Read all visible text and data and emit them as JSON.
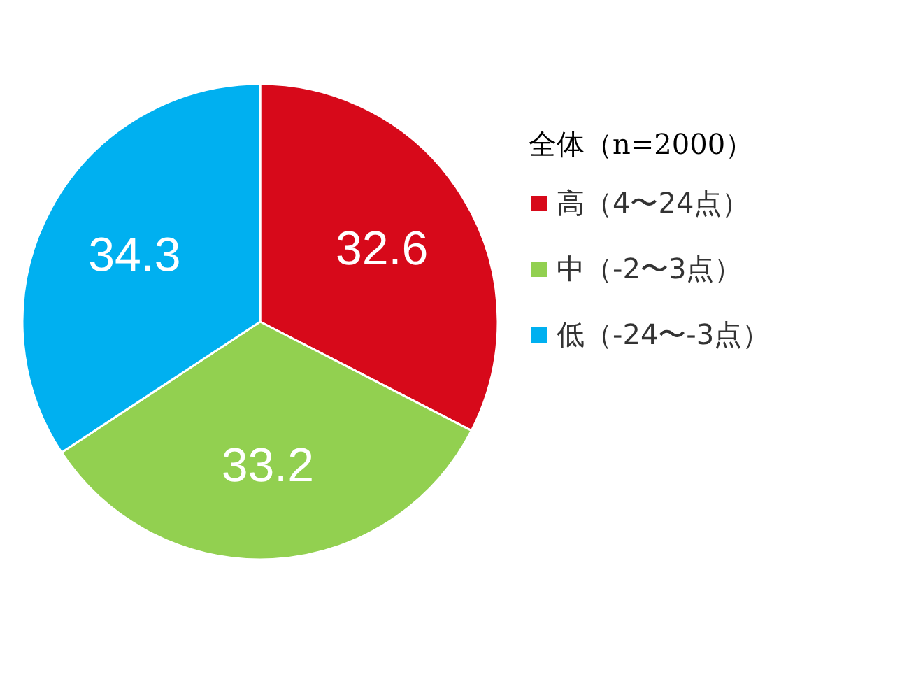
{
  "chart_data": {
    "type": "pie",
    "legend_title": "全体（n=2000）",
    "legend": "right",
    "data_labels": true,
    "categories": [
      "高（4〜24点）",
      "中（-2〜3点）",
      "低（-24〜-3点）"
    ],
    "values": [
      32.6,
      33.2,
      34.3
    ],
    "colors": [
      "#d7091a",
      "#92d050",
      "#00b0f0"
    ]
  }
}
